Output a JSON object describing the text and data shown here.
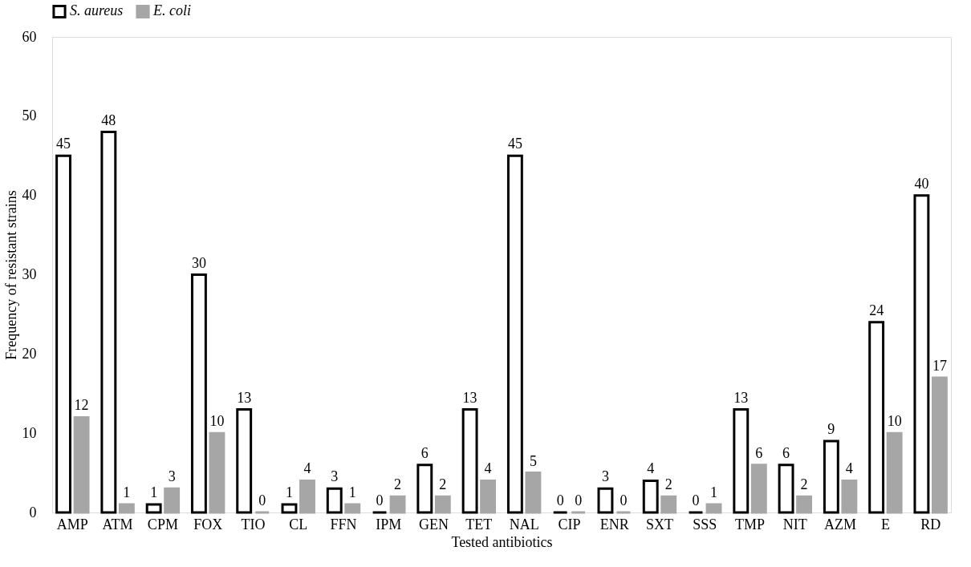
{
  "chart_data": {
    "type": "bar",
    "xlabel": "Tested antibiotics",
    "ylabel": "Frequency of resistant strains",
    "categories": [
      "AMP",
      "ATM",
      "CPM",
      "FOX",
      "TIO",
      "CL",
      "FFN",
      "IPM",
      "GEN",
      "TET",
      "NAL",
      "CIP",
      "ENR",
      "SXT",
      "SSS",
      "TMP",
      "NIT",
      "AZM",
      "E",
      "RD"
    ],
    "series": [
      {
        "name": "S. aureus",
        "color": "#000000",
        "values": [
          45,
          48,
          1,
          30,
          13,
          1,
          3,
          0,
          6,
          13,
          45,
          0,
          3,
          4,
          0,
          13,
          6,
          9,
          24,
          40
        ]
      },
      {
        "name": "E. coli",
        "color": "#a6a6a6",
        "values": [
          12,
          1,
          3,
          10,
          0,
          4,
          1,
          2,
          2,
          4,
          5,
          0,
          0,
          2,
          1,
          6,
          2,
          4,
          10,
          17
        ]
      }
    ],
    "ylim": [
      0,
      60
    ],
    "yticks": [
      0,
      10,
      20,
      30,
      40,
      50,
      60
    ],
    "grid": false,
    "legend": "top",
    "data_labels": true
  }
}
